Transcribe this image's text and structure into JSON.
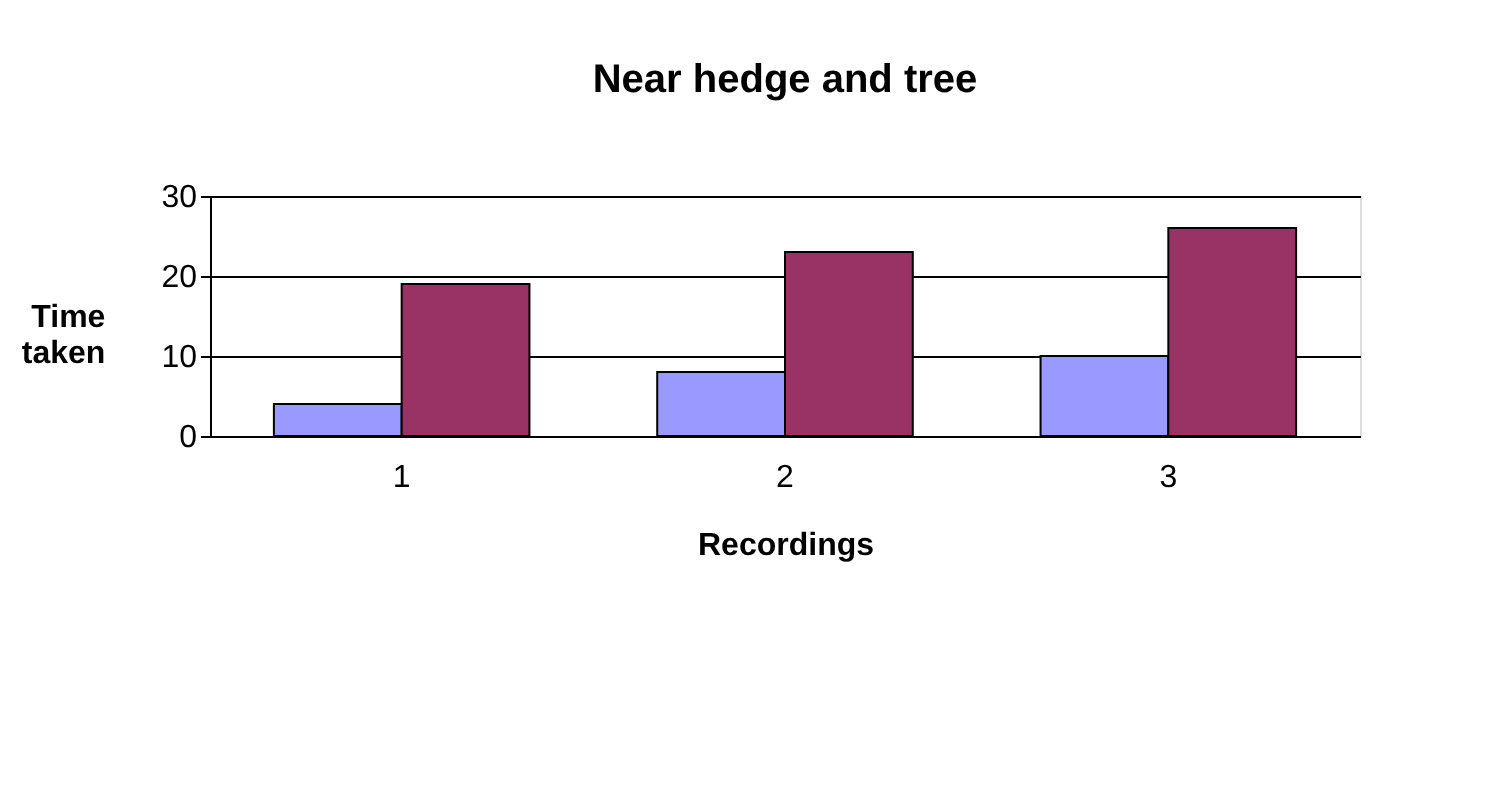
{
  "chart_data": {
    "type": "bar",
    "title": "Near hedge and tree",
    "xlabel": "Recordings",
    "ylabel": "Time taken",
    "categories": [
      "1",
      "2",
      "3"
    ],
    "series": [
      {
        "color": "#9999ff",
        "values": [
          4,
          8,
          10
        ]
      },
      {
        "color": "#993366",
        "values": [
          19,
          23,
          26
        ]
      }
    ],
    "ylim": [
      0,
      30
    ],
    "yticks": [
      0,
      10,
      20,
      30
    ],
    "grid": "y",
    "legend": false
  }
}
